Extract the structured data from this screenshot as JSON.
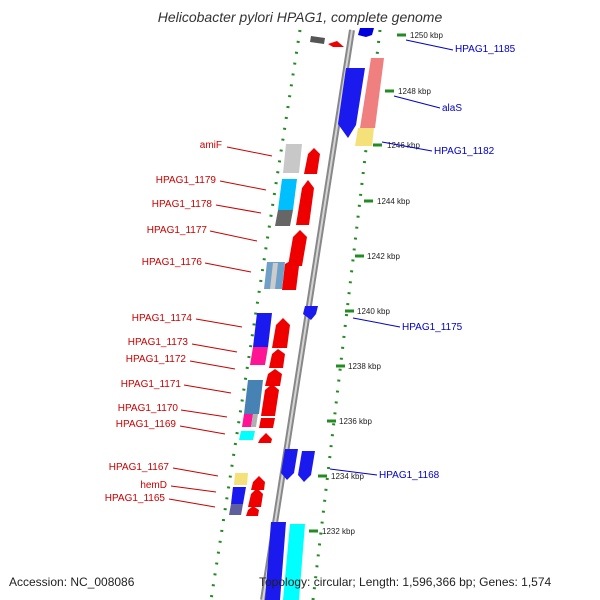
{
  "title": "Helicobacter pylori HPAG1, complete genome",
  "accession": "Accession: NC_008086",
  "topology": "Topology: circular; Length: 1,596,366 bp; Genes: 1,574",
  "colors": {
    "backbone": "#999999",
    "ruler": "#228b22",
    "forward_label": "#cc0000",
    "reverse_label": "#0000cc"
  },
  "ticks": [
    "1250 kbp",
    "1248 kbp",
    "1246 kbp",
    "1244 kbp",
    "1242 kbp",
    "1240 kbp",
    "1238 kbp",
    "1236 kbp",
    "1234 kbp",
    "1232 kbp"
  ],
  "left_labels": [
    "amiF",
    "HPAG1_1179",
    "HPAG1_1178",
    "HPAG1_1177",
    "HPAG1_1176",
    "HPAG1_1174",
    "HPAG1_1173",
    "HPAG1_1172",
    "HPAG1_1171",
    "HPAG1_1170",
    "HPAG1_1169",
    "HPAG1_1167",
    "hemD",
    "HPAG1_1165"
  ],
  "right_labels": [
    "HPAG1_1185",
    "alaS",
    "HPAG1_1182",
    "HPAG1_1175",
    "HPAG1_1168"
  ]
}
